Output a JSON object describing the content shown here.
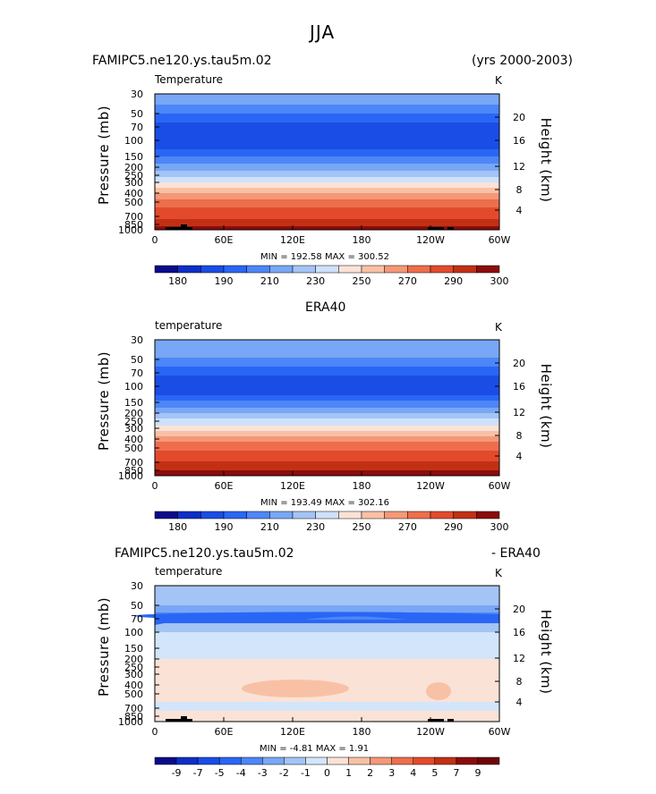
{
  "suptitle": "JJA",
  "panels": [
    {
      "title_left": "FAMIPC5.ne120.ys.tau5m.02",
      "title_center": "",
      "title_right": "(yrs 2000-2003)",
      "var_label": "Temperature",
      "units": "K",
      "minmax": "MIN = 192.58   MAX = 300.52",
      "colorbar_labels": [
        "180",
        "190",
        "210",
        "230",
        "250",
        "270",
        "290",
        "300"
      ]
    },
    {
      "title_left": "",
      "title_center": "ERA40",
      "title_right": "",
      "var_label": "temperature",
      "units": "K",
      "minmax": "MIN = 193.49   MAX = 302.16",
      "colorbar_labels": [
        "180",
        "190",
        "210",
        "230",
        "250",
        "270",
        "290",
        "300"
      ]
    },
    {
      "title_left": "FAMIPC5.ne120.ys.tau5m.02",
      "title_center": "",
      "title_right": "- ERA40",
      "var_label": "temperature",
      "units": "K",
      "minmax": "MIN =   -4.81   MAX =    1.91",
      "colorbar_labels": [
        "-9",
        "-7",
        "-5",
        "-4",
        "-3",
        "-2",
        "-1",
        "0",
        "1",
        "2",
        "3",
        "4",
        "5",
        "7",
        "9"
      ]
    }
  ],
  "axes": {
    "ylabel": "Pressure  (mb)",
    "ylabel_right": "Height  (km)",
    "pressure_ticks": [
      "30",
      "50",
      "70",
      "100",
      "150",
      "200",
      "250",
      "300",
      "400",
      "500",
      "700",
      "850",
      "1000"
    ],
    "height_ticks": [
      "20",
      "16",
      "12",
      "8",
      "4"
    ],
    "lon_ticks": [
      "0",
      "60E",
      "120E",
      "180",
      "120W",
      "60W"
    ]
  },
  "chart_data": [
    {
      "type": "heatmap",
      "title": "FAMIPC5.ne120.ys.tau5m.02",
      "subtitle": "(yrs 2000-2003)",
      "variable": "Temperature",
      "units": "K",
      "x": [
        "0",
        "60E",
        "120E",
        "180",
        "120W",
        "60W"
      ],
      "y_pressure": [
        30,
        50,
        70,
        100,
        150,
        200,
        250,
        300,
        400,
        500,
        700,
        850,
        1000
      ],
      "y_height_km": [
        20,
        16,
        12,
        8,
        4
      ],
      "min": 192.58,
      "max": 300.52,
      "contour_levels": [
        180,
        185,
        190,
        200,
        210,
        220,
        230,
        240,
        250,
        260,
        270,
        280,
        290,
        295,
        300
      ],
      "colors": [
        "#0a0a8c",
        "#0d2fc8",
        "#1a4de6",
        "#2a66f5",
        "#4d86f7",
        "#78a7f5",
        "#a3c4f5",
        "#cfe1fa",
        "#fbe2d6",
        "#f8c1a6",
        "#f49878",
        "#ee6e4c",
        "#e34a2c",
        "#c23014",
        "#8c0c0c"
      ]
    },
    {
      "type": "heatmap",
      "title": "ERA40",
      "variable": "temperature",
      "units": "K",
      "x": [
        "0",
        "60E",
        "120E",
        "180",
        "120W",
        "60W"
      ],
      "y_pressure": [
        30,
        50,
        70,
        100,
        150,
        200,
        250,
        300,
        400,
        500,
        700,
        850,
        1000
      ],
      "y_height_km": [
        20,
        16,
        12,
        8,
        4
      ],
      "min": 193.49,
      "max": 302.16,
      "contour_levels": [
        180,
        185,
        190,
        200,
        210,
        220,
        230,
        240,
        250,
        260,
        270,
        280,
        290,
        295,
        300
      ],
      "colors": [
        "#0a0a8c",
        "#0d2fc8",
        "#1a4de6",
        "#2a66f5",
        "#4d86f7",
        "#78a7f5",
        "#a3c4f5",
        "#cfe1fa",
        "#fbe2d6",
        "#f8c1a6",
        "#f49878",
        "#ee6e4c",
        "#e34a2c",
        "#c23014",
        "#8c0c0c"
      ]
    },
    {
      "type": "heatmap",
      "title": "FAMIPC5.ne120.ys.tau5m.02",
      "subtitle": "- ERA40",
      "variable": "temperature",
      "units": "K",
      "x": [
        "0",
        "60E",
        "120E",
        "180",
        "120W",
        "60W"
      ],
      "y_pressure": [
        30,
        50,
        70,
        100,
        150,
        200,
        250,
        300,
        400,
        500,
        700,
        850,
        1000
      ],
      "y_height_km": [
        20,
        16,
        12,
        8,
        4
      ],
      "min": -4.81,
      "max": 1.91,
      "contour_levels": [
        -9,
        -7,
        -5,
        -4,
        -3,
        -2,
        -1,
        0,
        1,
        2,
        3,
        4,
        5,
        7,
        9
      ],
      "colors": [
        "#0a0a8c",
        "#0d2fc8",
        "#1a4de6",
        "#2a66f5",
        "#4d86f7",
        "#78a7f5",
        "#a3c4f5",
        "#d3e5fa",
        "#fbe2d6",
        "#f8c1a6",
        "#f49878",
        "#ee6e4c",
        "#e34a2c",
        "#c23014",
        "#8c0c0c",
        "#6e0606"
      ]
    }
  ]
}
